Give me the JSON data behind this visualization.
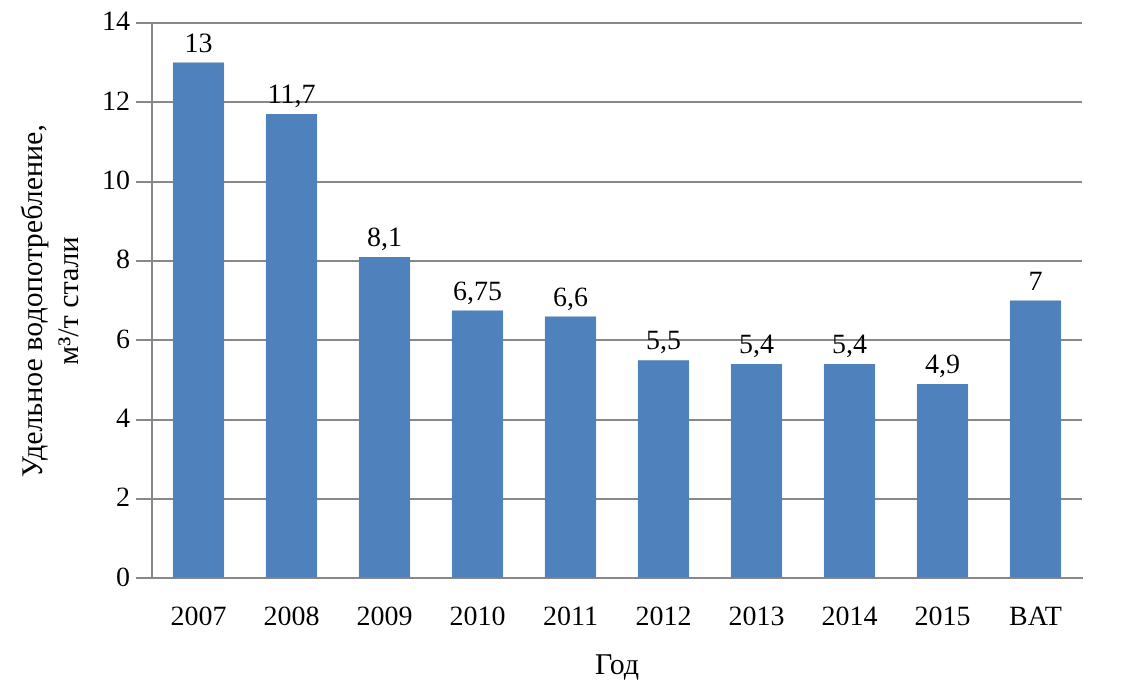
{
  "chart_data": {
    "type": "bar",
    "xlabel": "Год",
    "ylabel": "Удельное водопотребление, м³/т стали",
    "categories": [
      "2007",
      "2008",
      "2009",
      "2010",
      "2011",
      "2012",
      "2013",
      "2014",
      "2015",
      "BAT"
    ],
    "values": [
      13,
      11.7,
      8.1,
      6.75,
      6.6,
      5.5,
      5.4,
      5.4,
      4.9,
      7
    ],
    "value_labels": [
      "13",
      "11,7",
      "8,1",
      "6,75",
      "6,6",
      "5,5",
      "5,4",
      "5,4",
      "4,9",
      "7"
    ],
    "color": "#4f81bd",
    "ylim": [
      0,
      14
    ],
    "yticks": [
      0,
      2,
      4,
      6,
      8,
      10,
      12,
      14
    ],
    "grid": "y",
    "legend": false
  }
}
